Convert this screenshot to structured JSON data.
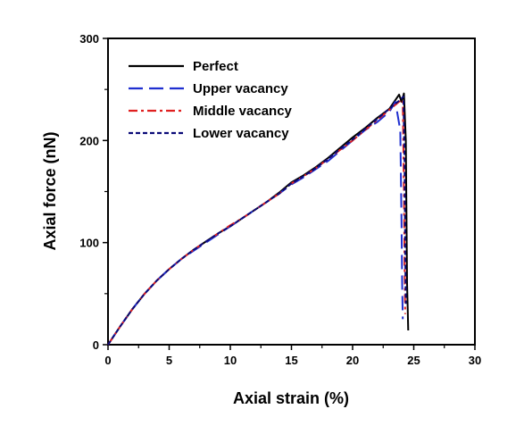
{
  "chart_data": {
    "type": "line",
    "title": "",
    "xlabel": "Axial strain (%)",
    "ylabel": "Axial force (nN)",
    "xlim": [
      0,
      30
    ],
    "ylim": [
      0,
      300
    ],
    "xticks": [
      0,
      5,
      10,
      15,
      20,
      25,
      30
    ],
    "yticks": [
      0,
      100,
      200,
      300
    ],
    "grid": false,
    "legend_position": "top-left",
    "series": [
      {
        "name": "Perfect",
        "color": "#000000",
        "dash": "solid",
        "x": [
          0,
          1,
          2,
          3,
          4,
          5,
          6,
          7,
          8,
          9,
          10,
          11,
          12,
          13,
          14,
          15,
          16,
          17,
          18,
          19,
          20,
          21,
          22,
          23,
          23.8,
          24.0,
          24.2,
          24.35,
          24.45,
          24.5,
          24.55
        ],
        "y": [
          0,
          18,
          35,
          50,
          63,
          74,
          84,
          93,
          101,
          109,
          116,
          124,
          132,
          140,
          149,
          159,
          166,
          174,
          183,
          193,
          203,
          212,
          222,
          231,
          245,
          238,
          246,
          200,
          60,
          40,
          14
        ]
      },
      {
        "name": "Upper vacancy",
        "color": "#1f2fd0",
        "dash": "long-dash",
        "x": [
          0,
          1,
          2,
          3,
          4,
          5,
          6,
          7,
          8,
          9,
          10,
          11,
          12,
          13,
          14,
          15,
          16,
          17,
          18,
          19,
          20,
          21,
          22,
          23,
          23.5,
          23.9,
          24.0,
          24.05,
          24.1
        ],
        "y": [
          0,
          18,
          35,
          50,
          63,
          74,
          84,
          92,
          100,
          108,
          116,
          124,
          132,
          140,
          148,
          157,
          164,
          172,
          180,
          190,
          200,
          210,
          218,
          228,
          238,
          210,
          120,
          60,
          25
        ]
      },
      {
        "name": "Middle vacancy",
        "color": "#e02020",
        "dash": "dash-dot",
        "x": [
          0,
          1,
          2,
          3,
          4,
          5,
          6,
          7,
          8,
          9,
          10,
          11,
          12,
          13,
          14,
          15,
          16,
          17,
          18,
          19,
          20,
          21,
          22,
          23,
          23.8,
          24.1,
          24.2,
          24.25,
          24.3
        ],
        "y": [
          0,
          18,
          35,
          50,
          63,
          74,
          84,
          93,
          101,
          109,
          117,
          124,
          132,
          140,
          148,
          158,
          165,
          173,
          182,
          191,
          200,
          210,
          220,
          230,
          238,
          240,
          150,
          80,
          30
        ]
      },
      {
        "name": "Lower vacancy",
        "color": "#0a0a78",
        "dash": "short-dash",
        "x": [
          0,
          1,
          2,
          3,
          4,
          5,
          6,
          7,
          8,
          9,
          10,
          11,
          12,
          13,
          14,
          15,
          16,
          17,
          18,
          19,
          20,
          21,
          22,
          23,
          23.9,
          24.15,
          24.25,
          24.3,
          24.35
        ],
        "y": [
          0,
          18,
          35,
          50,
          63,
          74,
          84,
          93,
          101,
          109,
          116,
          124,
          132,
          140,
          148,
          158,
          165,
          173,
          182,
          192,
          201,
          211,
          221,
          231,
          240,
          243,
          180,
          90,
          40
        ]
      }
    ]
  }
}
